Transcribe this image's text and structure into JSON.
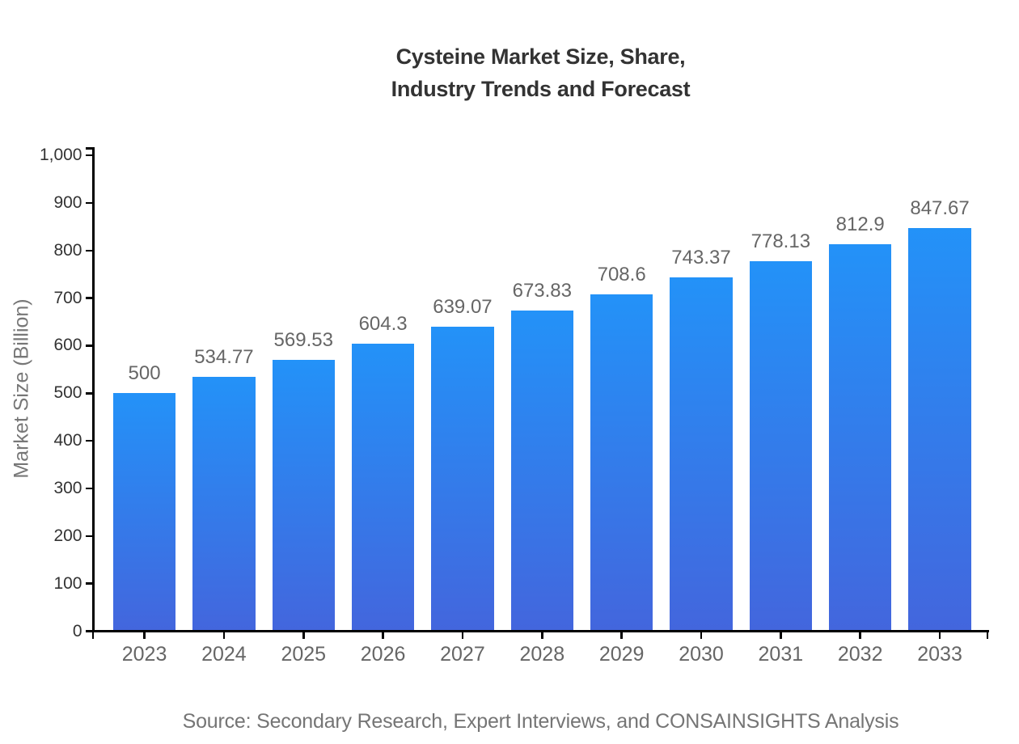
{
  "header": {
    "title_line1": "Cysteine Market Size, Share,",
    "title_line2": "Industry Trends and Forecast"
  },
  "footer": {
    "source": "Source: Secondary Research, Expert Interviews, and CONSAINSIGHTS Analysis"
  },
  "chart_data": {
    "type": "bar",
    "title": "Cysteine Market Size, Share, Industry Trends and Forecast",
    "xlabel": "",
    "ylabel": "Market Size (Billion)",
    "categories": [
      "2023",
      "2024",
      "2025",
      "2026",
      "2027",
      "2028",
      "2029",
      "2030",
      "2031",
      "2032",
      "2033"
    ],
    "values": [
      500,
      534.77,
      569.53,
      604.3,
      639.07,
      673.83,
      708.6,
      743.37,
      778.13,
      812.9,
      847.67
    ],
    "value_labels": [
      "500",
      "534.77",
      "569.53",
      "604.3",
      "639.07",
      "673.83",
      "708.6",
      "743.37",
      "778.13",
      "812.9",
      "847.67"
    ],
    "ylim": [
      0,
      1017.2
    ],
    "y_ticks": [
      0,
      100,
      200,
      300,
      400,
      500,
      600,
      700,
      800,
      900,
      1000
    ],
    "y_tick_labels": [
      "0",
      "100",
      "200",
      "300",
      "400",
      "500",
      "600",
      "700",
      "800",
      "900",
      "1,000"
    ],
    "grid": false,
    "legend": "none",
    "colors": {
      "bar_gradient_top": "#2392f8",
      "bar_gradient_bottom": "#4366dd",
      "axis": "#000000",
      "y_tick_label": "#333333",
      "category_label": "#666666",
      "value_label": "#666666",
      "axis_title": "#777777",
      "title": "#333333",
      "source_text": "#757575",
      "background": "#ffffff"
    }
  }
}
